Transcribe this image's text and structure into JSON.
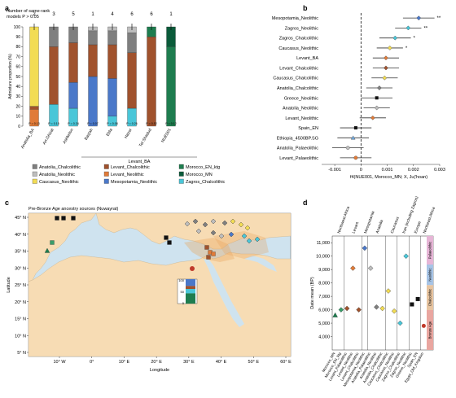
{
  "panel_labels": {
    "a": "a",
    "b": "b",
    "c": "c",
    "d": "d"
  },
  "colors": {
    "anatolia_chalcolithic": "#7f7f7f",
    "anatolia_neolithic": "#bdbdbd",
    "caucasus_neolithic": "#f2dc54",
    "levant_chalcolithic": "#a0522d",
    "levant_neolithic": "#e07b39",
    "mesopotamia_neolithic": "#4a78c9",
    "morocco_en_ktg": "#1e7d4f",
    "morocco_mn": "#0a5b3a",
    "zagros_chalcolithic": "#49c6d8",
    "land": "#f7dcb4",
    "water": "#cfe3ef"
  },
  "panel_a": {
    "top_label_line1": "Number of same-rank",
    "top_label_line2": "models P > 0.05",
    "counts": [
      "2",
      "3",
      "5",
      "1",
      "4",
      "6",
      "6",
      "1"
    ],
    "ylabel": "Admixture proportion (%)",
    "yticks": [
      "0",
      "10",
      "20",
      "30",
      "40",
      "50",
      "60",
      "70",
      "80",
      "90",
      "100"
    ],
    "group_label": "Levant_BA",
    "pvalues": [
      "P = 0.13",
      "P = 0.15",
      "P = 0.34",
      "P = 0.07",
      "P = 0.08",
      "P = 0.26",
      "P = 0.52",
      "P = 0.12"
    ],
    "legend": [
      {
        "label": "Anatolia_Chalcolithic",
        "color": "#7f7f7f"
      },
      {
        "label": "Levant_Chalcolithic",
        "color": "#a0522d"
      },
      {
        "label": "Morocco_EN_ktg",
        "color": "#1e7d4f"
      },
      {
        "label": "Anatolia_Neolithic",
        "color": "#bdbdbd"
      },
      {
        "label": "Levant_Neolithic",
        "color": "#e07b39"
      },
      {
        "label": "Morocco_MN",
        "color": "#0a5b3a"
      },
      {
        "label": "Caucasus_Neolithic",
        "color": "#f2dc54"
      },
      {
        "label": "Mesopotamia_Neolithic",
        "color": "#4a78c9"
      },
      {
        "label": "Zagros_Chalcolithic",
        "color": "#49c6d8"
      }
    ]
  },
  "chart_data": [
    {
      "type": "bar",
      "stacked": true,
      "categories": [
        "Anatolia_BA",
        "Arr.Ghizal",
        "Ashkelon",
        "Baq'ah",
        "Ebla",
        "Hazor",
        "Tel Shadud",
        "NUE001"
      ],
      "ylabel": "Admixture proportion (%)",
      "ylim": [
        0,
        100
      ],
      "series": [
        {
          "name": "Zagros_Chalcolithic",
          "values": [
            0,
            22,
            18,
            0,
            10,
            18,
            0,
            0
          ]
        },
        {
          "name": "Mesopotamia_Neolithic",
          "values": [
            0,
            0,
            26,
            50,
            38,
            0,
            0,
            0
          ]
        },
        {
          "name": "Levant_Neolithic",
          "values": [
            17,
            0,
            0,
            0,
            0,
            0,
            0,
            0
          ]
        },
        {
          "name": "Levant_Chalcolithic",
          "values": [
            3,
            58,
            40,
            32,
            34,
            56,
            90,
            0
          ]
        },
        {
          "name": "Anatolia_Chalcolithic",
          "values": [
            0,
            20,
            16,
            14,
            14,
            20,
            0,
            0
          ]
        },
        {
          "name": "Anatolia_Neolithic",
          "values": [
            0,
            0,
            0,
            4,
            4,
            6,
            0,
            0
          ]
        },
        {
          "name": "Caucasus_Neolithic",
          "values": [
            80,
            0,
            0,
            0,
            0,
            0,
            0,
            0
          ]
        },
        {
          "name": "Morocco_EN_ktg",
          "values": [
            0,
            0,
            0,
            0,
            0,
            0,
            10,
            80
          ]
        },
        {
          "name": "Morocco_MN",
          "values": [
            0,
            0,
            0,
            0,
            0,
            0,
            0,
            20
          ]
        }
      ]
    },
    {
      "type": "scatter",
      "xlabel": "f4(NUE001, Morocco_MN; X, Ju|'hoan)",
      "xlim": [
        -0.0015,
        0.003
      ],
      "xticks": [
        "-0.001",
        "0",
        "0.001",
        "0.002",
        "0.003"
      ],
      "categories": [
        "Mesopotamia_Neolithic",
        "Zagros_Neolithic",
        "Zagros_Chalcolithic",
        "Caucasus_Neolithic",
        "Levant_BA",
        "Levant_Chalcolithic",
        "Caucasus_Chalcolithic",
        "Anatolia_Chalcolithic",
        "Greece_Neolithic",
        "Anatolia_Neolithic",
        "Levant_Neolithic",
        "Spain_EN",
        "Ethiopia_4500BP.SG",
        "Anatolia_Palaeolithic",
        "Levant_Palaeolithic"
      ],
      "values": [
        0.0022,
        0.0018,
        0.0013,
        0.0011,
        0.00095,
        0.00095,
        0.0009,
        0.0007,
        0.0006,
        0.0006,
        0.00045,
        -0.0002,
        -0.0003,
        -0.0005,
        -0.0002
      ],
      "errors": [
        0.0006,
        0.0005,
        0.0006,
        0.0005,
        0.0005,
        0.0005,
        0.0005,
        0.0005,
        0.0006,
        0.0005,
        0.0005,
        0.0006,
        0.0006,
        0.0006,
        0.0006
      ],
      "annotations": [
        "**",
        "**",
        "*",
        "*",
        "",
        "",
        "",
        "",
        "",
        "",
        "",
        "",
        "",
        "",
        ""
      ]
    },
    {
      "type": "scatter",
      "ylabel": "Date mean (BP)",
      "ylim": [
        3000,
        11500
      ],
      "yticks": [
        "4,000",
        "5,000",
        "6,000",
        "7,000",
        "8,000",
        "9,000",
        "10,000",
        "11,000"
      ],
      "region_labels": [
        "Northwest Africa",
        "Levant",
        "Mesopotamia",
        "Anatolia",
        "Caucasus",
        "Iran (including Zagros)",
        "Europe",
        "Northeast Africa"
      ],
      "period_labels": [
        "Bronze Age",
        "Chalcolithic",
        "Neolithic",
        "Palaeolithic"
      ],
      "categories": [
        "Morocco_MN",
        "Morocco_EN_ktg",
        "Levant_Palaeolithic",
        "Levant_Neolithic",
        "Levant_Chalcolithic",
        "Mesopotamia_Neolithic",
        "Anatolia_Palaeolithic",
        "Anatolia_Neolithic",
        "Anatolia_Chalcolithic",
        "Caucasus_Chalcolithic",
        "Caucasus_Neolithic",
        "Zagros_Chalcolithic",
        "Zagros_Neolithic",
        "Greece_Neolithic",
        "Spain_EN",
        "Egypt_Old_Kingdom"
      ],
      "values": [
        5600,
        6000,
        6100,
        9100,
        6000,
        10600,
        9100,
        6200,
        6100,
        7400,
        5900,
        5000,
        10000,
        6400,
        6800,
        4800
      ]
    }
  ],
  "panel_c": {
    "title": "Pre-Bronze Age ancestry sources (Nuwayrat)",
    "ylabel": "Latitude",
    "xlabel": "Longitude",
    "lat_ticks": [
      "45° N",
      "40° N",
      "35° N",
      "30° N",
      "25° N",
      "20° N",
      "15° N",
      "10° N",
      "5° N"
    ],
    "lon_ticks": [
      "10° W",
      "0°",
      "10° E",
      "20° E",
      "30° E",
      "40° E",
      "50° E",
      "60° E"
    ],
    "inset_ticks": [
      "100",
      "50",
      "0"
    ]
  },
  "panel_d": {
    "ylabel": "Date mean (BP)",
    "yticks": [
      "4,000",
      "5,000",
      "6,000",
      "7,000",
      "8,000",
      "9,000",
      "10,000",
      "11,000"
    ],
    "region_labels": [
      "Northwest Africa",
      "Levant",
      "Mesopotamia",
      "Anatolia",
      "Caucasus",
      "Iran (including Zagros)",
      "Europe",
      "Northeast Africa"
    ],
    "period_labels": [
      "Bronze Age",
      "Chalcolithic",
      "Neolithic",
      "Palaeolithic"
    ],
    "xlabels": [
      "Morocco_MN",
      "Morocco_EN_ktg",
      "Levant_Palaeolithic",
      "Levant_Neolithic",
      "Levant_Chalcolithic",
      "Mesopotamia_Neolithic",
      "Anatolia_Palaeolithic",
      "Anatolia_Neolithic",
      "Anatolia_Chalcolithic",
      "Caucasus_Chalcolithic",
      "Caucasus_Neolithic",
      "Zagros_Chalcolithic",
      "Zagros_Neolithic",
      "Greece_Neolithic",
      "Spain_EN",
      "Egypt_Old_Kingdom"
    ]
  }
}
